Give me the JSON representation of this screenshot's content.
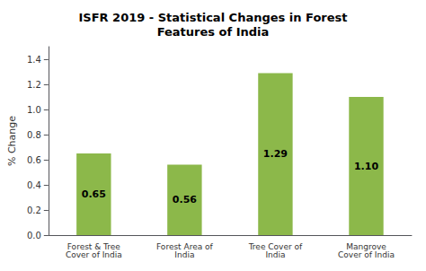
{
  "chart_data": {
    "type": "bar",
    "title": "ISFR 2019 - Statistical Changes in Forest\nFeatures of India",
    "categories": [
      "Forest & Tree\nCover of India",
      "Forest Area of\nIndia",
      "Tree Cover of\nIndia",
      "Mangrove\nCover of India"
    ],
    "values": [
      0.65,
      0.56,
      1.29,
      1.1
    ],
    "value_labels": [
      "0.65",
      "0.56",
      "1.29",
      "1.10"
    ],
    "data_labels": true,
    "color": "#8cb84a",
    "ylabel": "% Change",
    "ylim": [
      0,
      1.5
    ],
    "yticks": [
      {
        "value": 0,
        "label": "0.0"
      },
      0.2,
      0.4,
      0.6,
      0.8,
      {
        "value": 1.0,
        "label": "1.0"
      },
      1.2,
      1.4
    ],
    "grid": false
  }
}
